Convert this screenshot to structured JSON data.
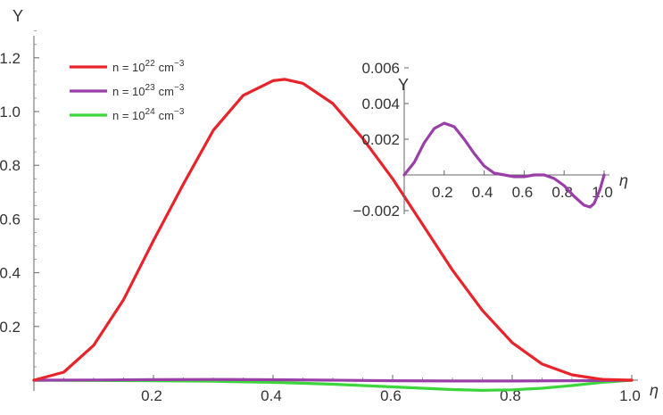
{
  "chart_data": [
    {
      "type": "line",
      "ylabel": "Y",
      "xlabel": "η",
      "xlim": [
        0,
        1.0
      ],
      "ylim": [
        -0.05,
        1.35
      ],
      "x_ticks": [
        {
          "value": 0.2,
          "label": "0.2"
        },
        {
          "value": 0.4,
          "label": "0.4"
        },
        {
          "value": 0.6,
          "label": "0.6"
        },
        {
          "value": 0.8,
          "label": "0.8"
        },
        {
          "value": 1.0,
          "label": "1.0"
        }
      ],
      "y_ticks": [
        {
          "value": 0.2,
          "label": "0.2"
        },
        {
          "value": 0.4,
          "label": "0.4"
        },
        {
          "value": 0.6,
          "label": "0.6"
        },
        {
          "value": 0.8,
          "label": "0.8"
        },
        {
          "value": 1.0,
          "label": "1.0"
        },
        {
          "value": 1.2,
          "label": "1.2"
        }
      ],
      "legend_position": "top-left",
      "series": [
        {
          "name": "n = 10^22 cm^-3",
          "legend": {
            "base": "n = 10",
            "exp": "22",
            "unit": "cm",
            "unit_exp": "−3"
          },
          "color": "#e8242b",
          "x": [
            0,
            0.05,
            0.1,
            0.15,
            0.2,
            0.25,
            0.3,
            0.35,
            0.4,
            0.42,
            0.45,
            0.5,
            0.55,
            0.6,
            0.65,
            0.7,
            0.75,
            0.8,
            0.85,
            0.9,
            0.95,
            1.0
          ],
          "y": [
            0,
            0.03,
            0.13,
            0.3,
            0.52,
            0.73,
            0.93,
            1.06,
            1.115,
            1.12,
            1.105,
            1.03,
            0.9,
            0.75,
            0.58,
            0.41,
            0.26,
            0.14,
            0.06,
            0.02,
            0.003,
            0
          ]
        },
        {
          "name": "n = 10^23 cm^-3",
          "legend": {
            "base": "n = 10",
            "exp": "23",
            "unit": "cm",
            "unit_exp": "−3"
          },
          "color": "#9a3ea8",
          "x": [
            0,
            0.1,
            0.2,
            0.3,
            0.4,
            0.5,
            0.6,
            0.7,
            0.8,
            0.9,
            1.0
          ],
          "y": [
            0,
            0.0005,
            0.002,
            0.0025,
            0.0015,
            0,
            -0.002,
            -0.003,
            -0.003,
            -0.002,
            0
          ]
        },
        {
          "name": "n = 10^24 cm^-3",
          "legend": {
            "base": "n = 10",
            "exp": "24",
            "unit": "cm",
            "unit_exp": "−3"
          },
          "color": "#3cd63c",
          "x": [
            0,
            0.1,
            0.2,
            0.3,
            0.4,
            0.5,
            0.6,
            0.7,
            0.75,
            0.8,
            0.85,
            0.9,
            0.95,
            1.0
          ],
          "y": [
            0,
            -0.001,
            -0.002,
            -0.004,
            -0.008,
            -0.015,
            -0.025,
            -0.035,
            -0.038,
            -0.036,
            -0.03,
            -0.02,
            -0.008,
            0
          ]
        }
      ]
    },
    {
      "type": "line",
      "ylabel": "Y",
      "xlabel": "η",
      "xlim": [
        0,
        1.0
      ],
      "ylim": [
        -0.0025,
        0.007
      ],
      "x_ticks": [
        {
          "value": 0.2,
          "label": "0.2"
        },
        {
          "value": 0.4,
          "label": "0.4"
        },
        {
          "value": 0.6,
          "label": "0.6"
        },
        {
          "value": 0.8,
          "label": "0.8"
        },
        {
          "value": 1.0,
          "label": "1.0"
        }
      ],
      "y_ticks": [
        {
          "value": -0.002,
          "label": "−0.002"
        },
        {
          "value": 0.002,
          "label": "0.002"
        },
        {
          "value": 0.004,
          "label": "0.004"
        },
        {
          "value": 0.006,
          "label": "0.006"
        }
      ],
      "series": [
        {
          "color": "#9a3ea8",
          "x": [
            0,
            0.05,
            0.1,
            0.15,
            0.2,
            0.25,
            0.3,
            0.35,
            0.4,
            0.45,
            0.5,
            0.55,
            0.6,
            0.65,
            0.7,
            0.75,
            0.8,
            0.85,
            0.9,
            0.93,
            0.95,
            0.98,
            1.0
          ],
          "y": [
            0,
            0.0007,
            0.0018,
            0.0026,
            0.0029,
            0.0027,
            0.002,
            0.0012,
            0.0005,
            0.0001,
            0,
            -0.0001,
            -0.0001,
            0,
            0,
            -0.0002,
            -0.0006,
            -0.0012,
            -0.0017,
            -0.0018,
            -0.0016,
            -0.0008,
            0
          ]
        }
      ]
    }
  ]
}
